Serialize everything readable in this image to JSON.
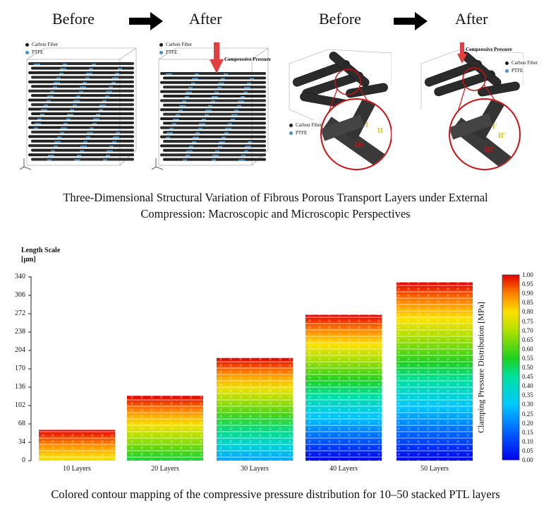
{
  "top": {
    "before_left": "Before",
    "after_left": "After",
    "before_right": "Before",
    "after_right": "After",
    "legend_carbon": "Carbon Fiber",
    "legend_ptfe": "PTFE",
    "compressive_pressure": "Compressive Pressure",
    "region_labels": [
      "I",
      "II",
      "III"
    ],
    "region_labels_prime": [
      "I'",
      "II'",
      "III'"
    ],
    "caption_line1": "Three-Dimensional Structural Variation of Fibrous Porous Transport Layers under External",
    "caption_line2": "Compression: Macroscopic and Microscopic Perspectives"
  },
  "chart_data": {
    "type": "bar",
    "title": "",
    "ylabel_line1": "Length Scale",
    "ylabel_line2": "[μm]",
    "y_ticks": [
      "340",
      "306",
      "272",
      "238",
      "204",
      "170",
      "136",
      "102",
      "68",
      "34",
      "0"
    ],
    "ylim": [
      0,
      340
    ],
    "categories": [
      "10 Layers",
      "20 Layers",
      "30 Layers",
      "40 Layers",
      "50 Layers"
    ],
    "values": [
      57,
      120,
      190,
      270,
      330
    ],
    "colorbar": {
      "label": "Clamping Pressure Distribution [MPa]",
      "min": 0.0,
      "max": 1.0,
      "ticks": [
        "1.00",
        "0.95",
        "0.90",
        "0.85",
        "0.80",
        "0.75",
        "0.70",
        "0.65",
        "0.60",
        "0.55",
        "0.50",
        "0.45",
        "0.40",
        "0.35",
        "0.30",
        "0.25",
        "0.20",
        "0.15",
        "0.10",
        "0.05",
        "0.00"
      ]
    },
    "caption": "Colored contour mapping of the compressive pressure distribution  for 10–50 stacked PTL layers"
  },
  "colors": {
    "carbon": "#1a1a1a",
    "ptfe": "#4a90c8",
    "arrow": "#e04040",
    "zoom": "#cc1111",
    "label_yellow": "#e0c000",
    "label_red": "#d01010"
  }
}
